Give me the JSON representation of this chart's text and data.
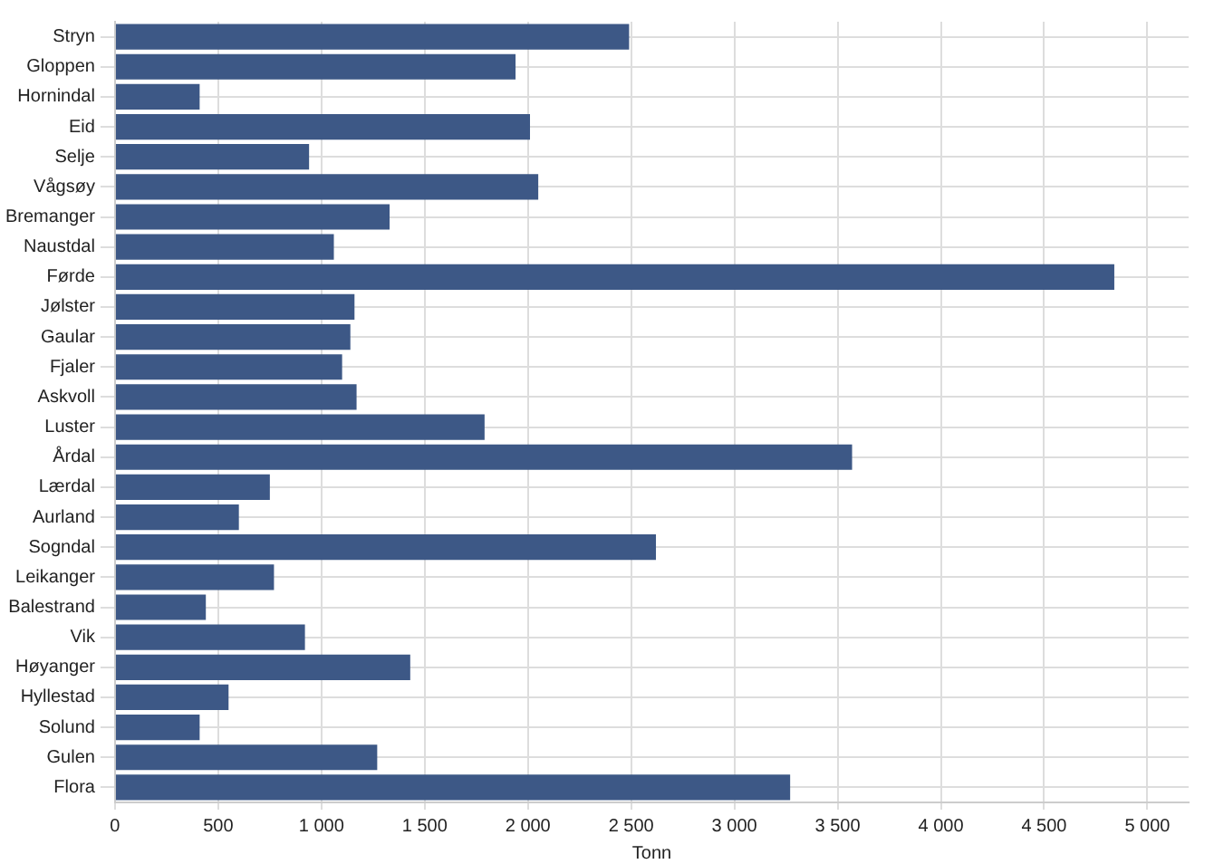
{
  "chart_data": {
    "type": "bar",
    "orientation": "horizontal",
    "xlabel": "Tonn",
    "categories": [
      "Stryn",
      "Gloppen",
      "Hornindal",
      "Eid",
      "Selje",
      "Vågsøy",
      "Bremanger",
      "Naustdal",
      "Førde",
      "Jølster",
      "Gaular",
      "Fjaler",
      "Askvoll",
      "Luster",
      "Årdal",
      "Lærdal",
      "Aurland",
      "Sogndal",
      "Leikanger",
      "Balestrand",
      "Vik",
      "Høyanger",
      "Hyllestad",
      "Solund",
      "Gulen",
      "Flora"
    ],
    "values": [
      2490,
      1940,
      410,
      2010,
      940,
      2050,
      1330,
      1060,
      4840,
      1160,
      1140,
      1100,
      1170,
      1790,
      3570,
      750,
      600,
      2620,
      770,
      440,
      920,
      1430,
      550,
      410,
      1270,
      3270
    ],
    "color": "#3d5886",
    "xlim": [
      0,
      5200
    ],
    "xticks": [
      0,
      500,
      {
        "value": 1000,
        "label": "1 000"
      },
      {
        "value": 1500,
        "label": "1 500"
      },
      {
        "value": 2000,
        "label": "2 000"
      },
      {
        "value": 2500,
        "label": "2 500"
      },
      {
        "value": 3000,
        "label": "3 000"
      },
      {
        "value": 3500,
        "label": "3 500"
      },
      {
        "value": 4000,
        "label": "4 000"
      },
      {
        "value": 4500,
        "label": "4 500"
      },
      {
        "value": 5000,
        "label": "5 000"
      }
    ],
    "grid": true,
    "legend": false
  }
}
